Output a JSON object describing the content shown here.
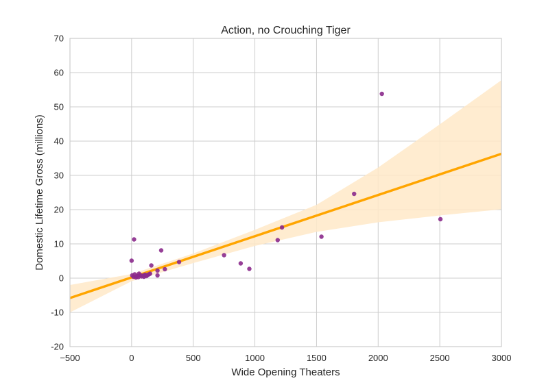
{
  "chart_data": {
    "type": "scatter",
    "title": "Action, no Crouching Tiger",
    "xlabel": "Wide Opening Theaters",
    "ylabel": "Domestic Lifetime Gross (millions)",
    "xlim": [
      -500,
      3000
    ],
    "ylim": [
      -20,
      70
    ],
    "x_ticks": [
      -500,
      0,
      500,
      1000,
      1500,
      2000,
      2500,
      3000
    ],
    "x_tick_labels": [
      "−500",
      "0",
      "500",
      "1000",
      "1500",
      "2000",
      "2500",
      "3000"
    ],
    "y_ticks": [
      -20,
      -10,
      0,
      10,
      20,
      30,
      40,
      50,
      60,
      70
    ],
    "y_tick_labels": [
      "-20",
      "-10",
      "0",
      "10",
      "20",
      "30",
      "40",
      "50",
      "60",
      "70"
    ],
    "grid": true,
    "colors": {
      "points": "#8b2a8c",
      "regression_line": "#ffa500",
      "confidence_band": "#ffe9c8",
      "grid": "#cccccc",
      "axes_border": "#cccccc"
    },
    "points": [
      {
        "x": 2030,
        "y": 53.8
      },
      {
        "x": 1805,
        "y": 24.6
      },
      {
        "x": 2505,
        "y": 17.2
      },
      {
        "x": 1220,
        "y": 14.8
      },
      {
        "x": 1540,
        "y": 12.1
      },
      {
        "x": 1185,
        "y": 11.1
      },
      {
        "x": 750,
        "y": 6.7
      },
      {
        "x": 885,
        "y": 4.3
      },
      {
        "x": 955,
        "y": 2.7
      },
      {
        "x": 385,
        "y": 4.7
      },
      {
        "x": 240,
        "y": 8.1
      },
      {
        "x": 270,
        "y": 2.6
      },
      {
        "x": 210,
        "y": 2.2
      },
      {
        "x": 210,
        "y": 0.8
      },
      {
        "x": 160,
        "y": 3.7
      },
      {
        "x": 20,
        "y": 11.3
      },
      {
        "x": 0,
        "y": 5.1
      },
      {
        "x": 5,
        "y": 0.8
      },
      {
        "x": 15,
        "y": 0.4
      },
      {
        "x": 25,
        "y": 1.1
      },
      {
        "x": 35,
        "y": 0.2
      },
      {
        "x": 45,
        "y": 0.6
      },
      {
        "x": 55,
        "y": 0.3
      },
      {
        "x": 60,
        "y": 1.3
      },
      {
        "x": 70,
        "y": 0.9
      },
      {
        "x": 80,
        "y": 0.5
      },
      {
        "x": 90,
        "y": 0.7
      },
      {
        "x": 100,
        "y": 0.4
      },
      {
        "x": 110,
        "y": 1.0
      },
      {
        "x": 120,
        "y": 0.6
      },
      {
        "x": 130,
        "y": 0.9
      },
      {
        "x": 140,
        "y": 1.1
      },
      {
        "x": 150,
        "y": 1.3
      },
      {
        "x": 100,
        "y": 0.8
      },
      {
        "x": 40,
        "y": 0.5
      }
    ],
    "regression": {
      "x": [
        -500,
        3000
      ],
      "y": [
        -5.8,
        36.3
      ]
    },
    "confidence_band": {
      "x": [
        -500,
        0,
        500,
        1000,
        1500,
        2000,
        2500,
        3000
      ],
      "lower": [
        -10.0,
        -0.9,
        4.4,
        9.4,
        13.5,
        16.3,
        18.3,
        20.1
      ],
      "upper": [
        -2.0,
        1.2,
        7.2,
        14.1,
        21.4,
        32.3,
        44.9,
        57.8
      ]
    }
  }
}
